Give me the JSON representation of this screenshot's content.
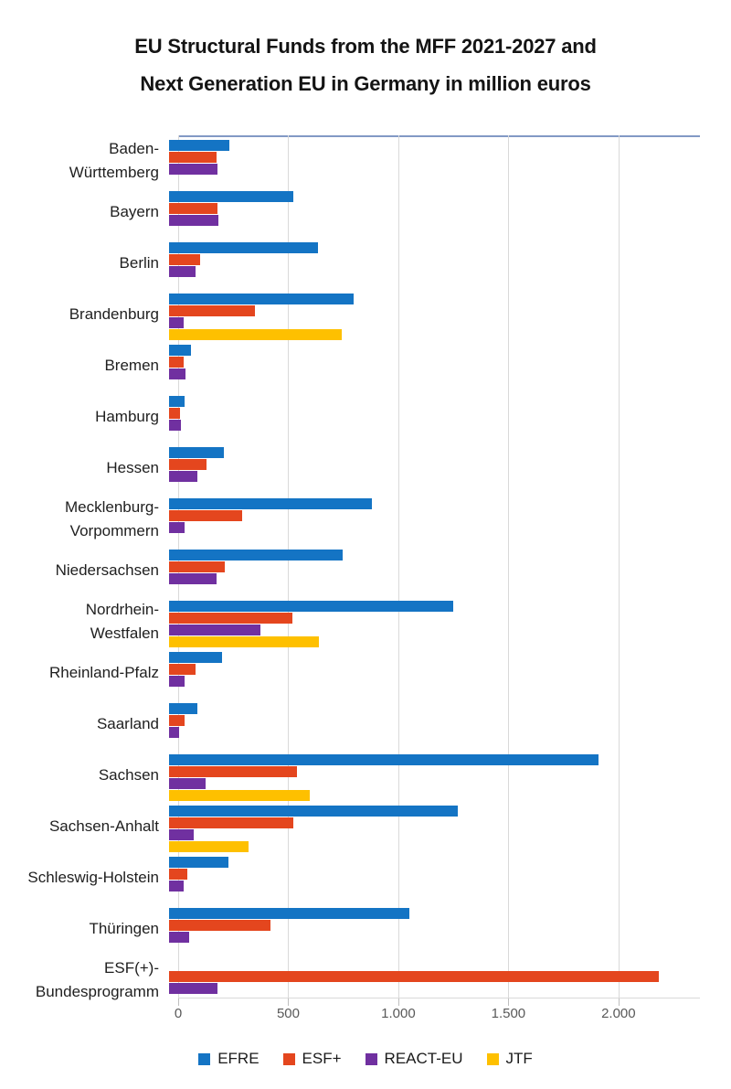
{
  "title": {
    "line1": "EU Structural Funds from the MFF 2021-2027 and",
    "line2": "Next Generation EU in Germany in million euros"
  },
  "chart_data": {
    "type": "bar",
    "orientation": "horizontal",
    "title": "EU Structural Funds from the MFF 2021-2027 and Next Generation EU in Germany in million euros",
    "unit": "million euros",
    "categories": [
      "Baden-Württemberg",
      "Bayern",
      "Berlin",
      "Brandenburg",
      "Bremen",
      "Hamburg",
      "Hessen",
      "Mecklenburg-Vorpommern",
      "Niedersachsen",
      "Nordrhein-Westfalen",
      "Rheinland-Pfalz",
      "Saarland",
      "Sachsen",
      "Sachsen-Anhalt",
      "Schleswig-Holstein",
      "Thüringen",
      "ESF(+)-Bundesprogramm"
    ],
    "category_label_lines": [
      [
        "Baden-",
        "Württemberg"
      ],
      [
        "Bayern"
      ],
      [
        "Berlin"
      ],
      [
        "Brandenburg"
      ],
      [
        "Bremen"
      ],
      [
        "Hamburg"
      ],
      [
        "Hessen"
      ],
      [
        "Mecklenburg-",
        "Vorpommern"
      ],
      [
        "Niedersachsen"
      ],
      [
        "Nordrhein-",
        "Westfalen"
      ],
      [
        "Rheinland-Pfalz"
      ],
      [
        "Saarland"
      ],
      [
        "Sachsen"
      ],
      [
        "Sachsen-Anhalt"
      ],
      [
        "Schleswig-Holstein"
      ],
      [
        "Thüringen"
      ],
      [
        "ESF(+)-",
        "Bundesprogramm"
      ]
    ],
    "series": [
      {
        "name": "EFRE",
        "color": "#1474c4",
        "values": [
          275,
          565,
          675,
          840,
          100,
          70,
          250,
          920,
          790,
          1290,
          240,
          130,
          1950,
          1310,
          270,
          1090,
          null
        ]
      },
      {
        "name": "ESF+",
        "color": "#e4461e",
        "values": [
          215,
          220,
          140,
          390,
          65,
          50,
          170,
          330,
          255,
          560,
          120,
          70,
          580,
          565,
          85,
          460,
          2225
        ]
      },
      {
        "name": "REACT-EU",
        "color": "#7030a0",
        "values": [
          220,
          225,
          120,
          65,
          75,
          55,
          130,
          70,
          215,
          415,
          70,
          45,
          165,
          110,
          65,
          90,
          220
        ]
      },
      {
        "name": "JTF",
        "color": "#fec000",
        "values": [
          null,
          null,
          null,
          785,
          null,
          null,
          null,
          null,
          null,
          680,
          null,
          null,
          640,
          360,
          null,
          null,
          null
        ]
      }
    ],
    "xlim": [
      0,
      2370
    ],
    "x_ticks": [
      0,
      500,
      1000,
      1500,
      2000
    ],
    "x_tick_labels": [
      "0",
      "500",
      "1.000",
      "1.500",
      "2.000"
    ],
    "grid": true,
    "legend_position": "bottom"
  },
  "legend": {
    "items": [
      {
        "label": "EFRE",
        "color": "#1474c4"
      },
      {
        "label": "ESF+",
        "color": "#e4461e"
      },
      {
        "label": "REACT-EU",
        "color": "#7030a0"
      },
      {
        "label": "JTF",
        "color": "#fec000"
      }
    ]
  },
  "colors": {
    "plot_top_border": "#8299c5",
    "gridline": "#d9d9d9",
    "axis_text": "#595959",
    "title_text": "#141414"
  }
}
